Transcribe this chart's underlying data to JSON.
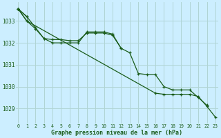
{
  "title": "Graphe pression niveau de la mer (hPa)",
  "bg_color": "#cceeff",
  "grid_color": "#b0d4d4",
  "line_color": "#1a5c1a",
  "x_ticks": [
    0,
    1,
    2,
    3,
    4,
    5,
    6,
    7,
    8,
    9,
    10,
    11,
    12,
    13,
    14,
    15,
    16,
    17,
    18,
    19,
    20,
    21,
    22,
    23
  ],
  "y_ticks": [
    1029,
    1030,
    1031,
    1032,
    1033
  ],
  "ylim": [
    1028.3,
    1033.85
  ],
  "xlim": [
    -0.3,
    23.3
  ],
  "series": [
    [
      1033.55,
      1033.2,
      null,
      null,
      null,
      null,
      null,
      null,
      null,
      null,
      null,
      null,
      null,
      null,
      null,
      null,
      null,
      null,
      null,
      null,
      null,
      null,
      null,
      null
    ],
    [
      1033.55,
      1033.2,
      1032.7,
      1032.2,
      1032.15,
      1032.15,
      1032.1,
      1032.1,
      1032.45,
      1032.45,
      1032.45,
      1032.35,
      1031.75,
      1031.55,
      1030.6,
      1030.55,
      1030.55,
      1030.0,
      1029.85,
      1029.85,
      1029.85,
      1029.5,
      1029.15,
      null
    ],
    [
      1033.55,
      1033.0,
      1032.65,
      1032.2,
      1032.0,
      1032.0,
      1032.0,
      1032.0,
      1032.5,
      1032.5,
      1032.5,
      1032.4,
      1031.75,
      null,
      null,
      null,
      null,
      null,
      null,
      null,
      null,
      null,
      null,
      null
    ],
    [
      1033.55,
      1033.0,
      null,
      null,
      null,
      null,
      null,
      null,
      null,
      null,
      null,
      null,
      null,
      null,
      null,
      null,
      1029.7,
      1029.65,
      1029.65,
      1029.65,
      1029.65,
      1029.55,
      1029.1,
      1028.6
    ]
  ]
}
